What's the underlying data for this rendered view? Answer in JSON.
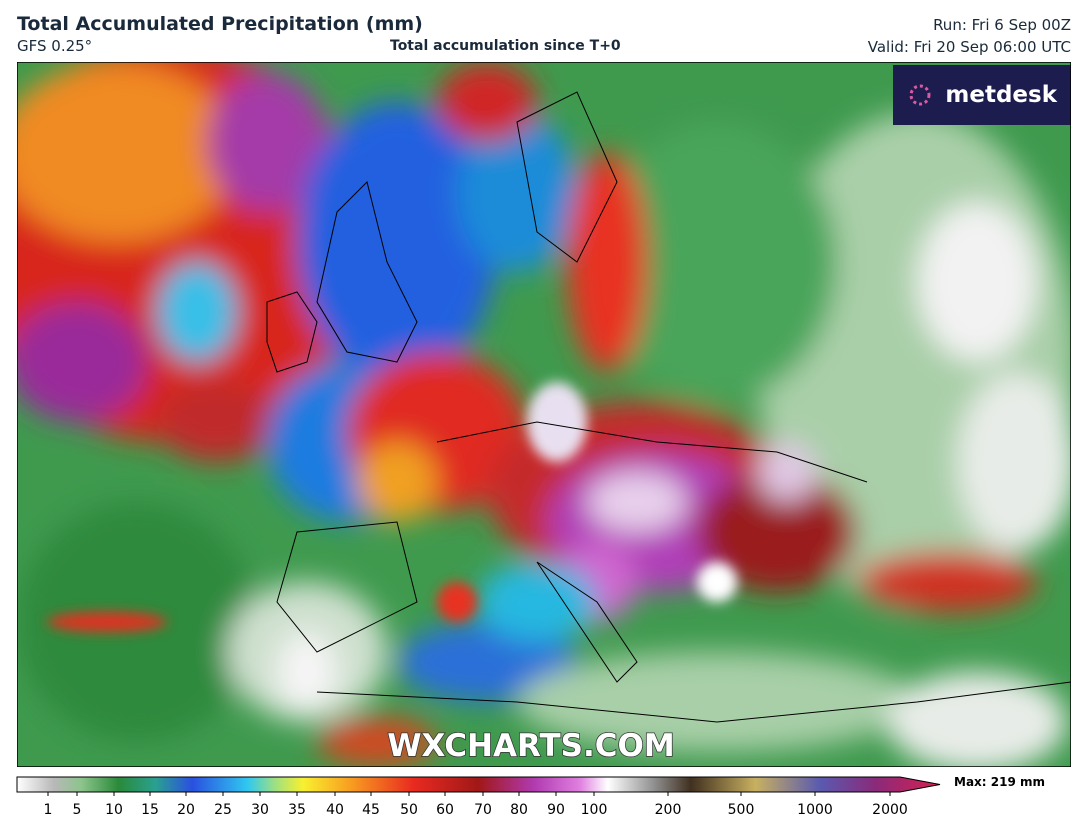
{
  "header": {
    "title": "Total Accumulated Precipitation (mm)",
    "model": "GFS 0.25°",
    "subtitle": "Total accumulation since T+0",
    "run": "Run: Fri 6 Sep 00Z",
    "valid": "Valid: Fri 20 Sep 06:00 UTC"
  },
  "logo": "metdesk",
  "watermark": "WXCHARTS.COM",
  "colorbar": {
    "ticks": [
      1,
      5,
      10,
      15,
      20,
      25,
      30,
      35,
      40,
      45,
      50,
      60,
      70,
      80,
      90,
      100,
      200,
      500,
      1000,
      2000
    ],
    "max_label": "Max: 219 mm"
  }
}
